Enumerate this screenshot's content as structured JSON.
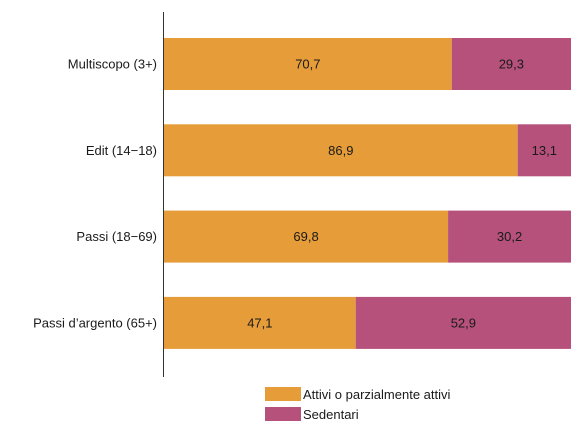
{
  "chart_data": {
    "type": "bar",
    "orientation": "horizontal",
    "stacked": true,
    "categories": [
      "Multiscopo (3+)",
      "Edit (14−18)",
      "Passi (18−69)",
      "Passi d’argento (65+)"
    ],
    "series": [
      {
        "name": "Attivi o parzialmente attivi",
        "color": "#E59C39",
        "values": [
          70.7,
          86.9,
          69.8,
          47.1
        ],
        "labels": [
          "70,7",
          "86,9",
          "69,8",
          "47,1"
        ]
      },
      {
        "name": "Sedentari",
        "color": "#B5517A",
        "values": [
          29.3,
          13.1,
          30.2,
          52.9
        ],
        "labels": [
          "29,3",
          "13,1",
          "30,2",
          "52,9"
        ]
      }
    ],
    "xlim": [
      0,
      100
    ],
    "grid": false,
    "legend_position": "bottom"
  }
}
